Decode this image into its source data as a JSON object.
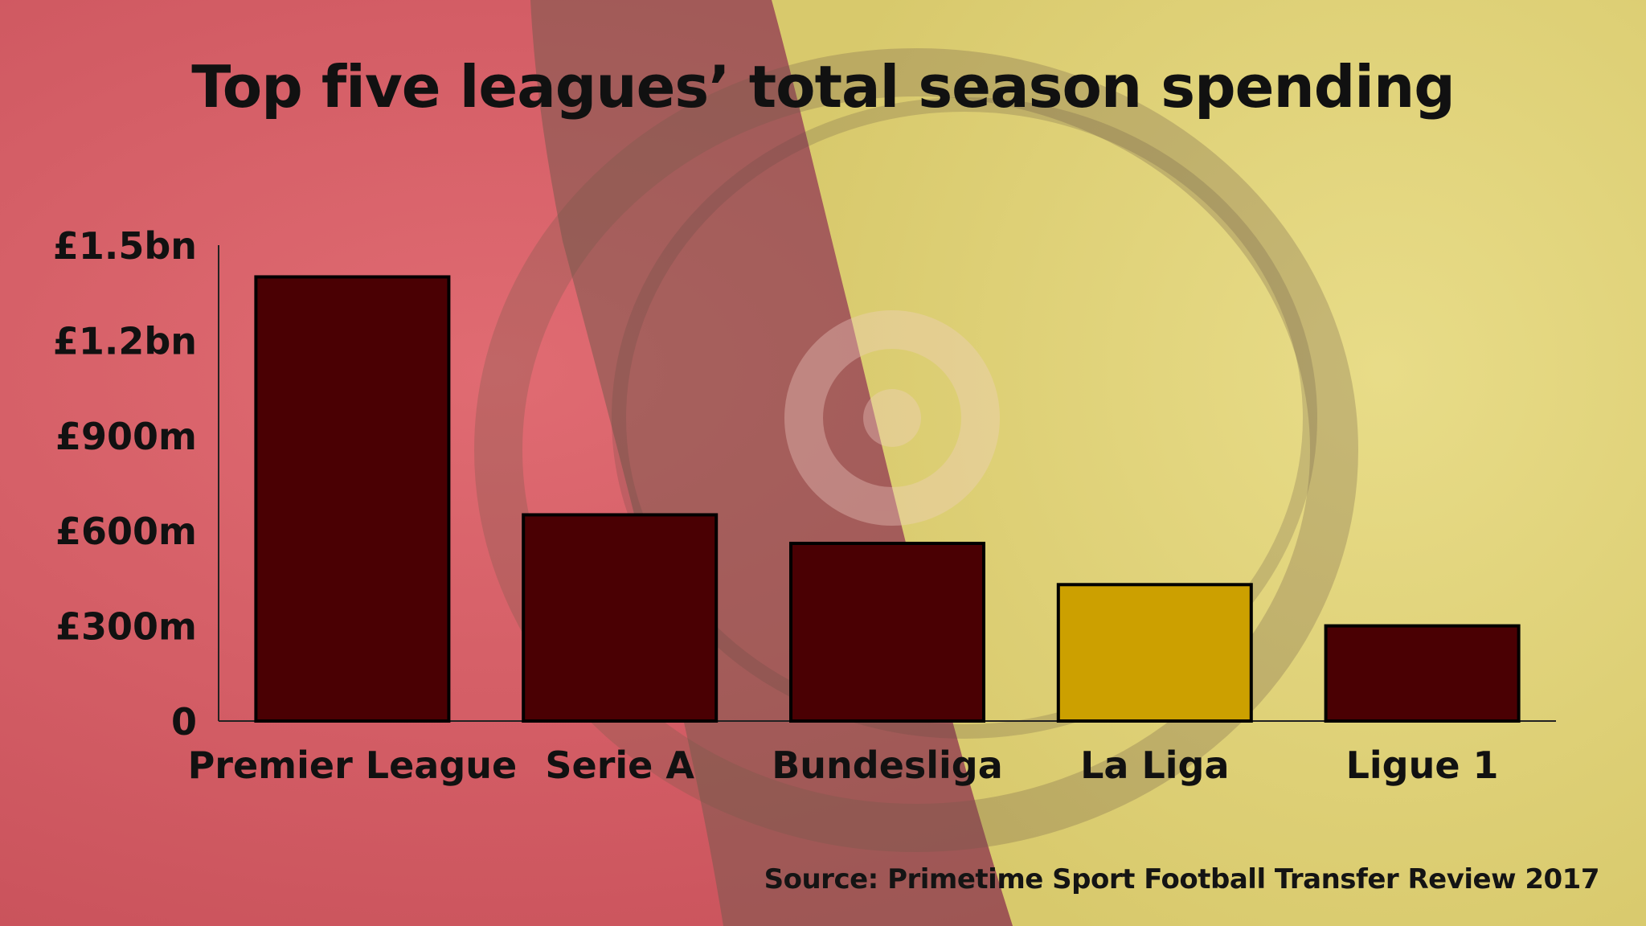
{
  "colors": {
    "background_red": "#d9626a",
    "background_yellow": "#e1d67e",
    "bar_default": "#4a0003",
    "bar_highlight": "#cca000",
    "text": "#111111"
  },
  "chart_data": {
    "type": "bar",
    "title": "Top five leagues’ total season spending",
    "categories": [
      "Premier League",
      "Serie A",
      "Bundesliga",
      "La Liga",
      "Ligue 1"
    ],
    "values": [
      1400,
      650,
      560,
      430,
      300
    ],
    "unit": "£m",
    "highlighted_category": "La Liga",
    "ylim": [
      0,
      1500
    ],
    "yticks": [
      {
        "value": 0,
        "label": "0"
      },
      {
        "value": 300,
        "label": "£300m"
      },
      {
        "value": 600,
        "label": "£600m"
      },
      {
        "value": 900,
        "label": "£900m"
      },
      {
        "value": 1200,
        "label": "£1.2bn"
      },
      {
        "value": 1500,
        "label": "£1.5bn"
      }
    ],
    "xlabel": "",
    "ylabel": "",
    "grid": false,
    "legend": "none",
    "source": "Source: Primetime Sport Football Transfer Review 2017"
  }
}
